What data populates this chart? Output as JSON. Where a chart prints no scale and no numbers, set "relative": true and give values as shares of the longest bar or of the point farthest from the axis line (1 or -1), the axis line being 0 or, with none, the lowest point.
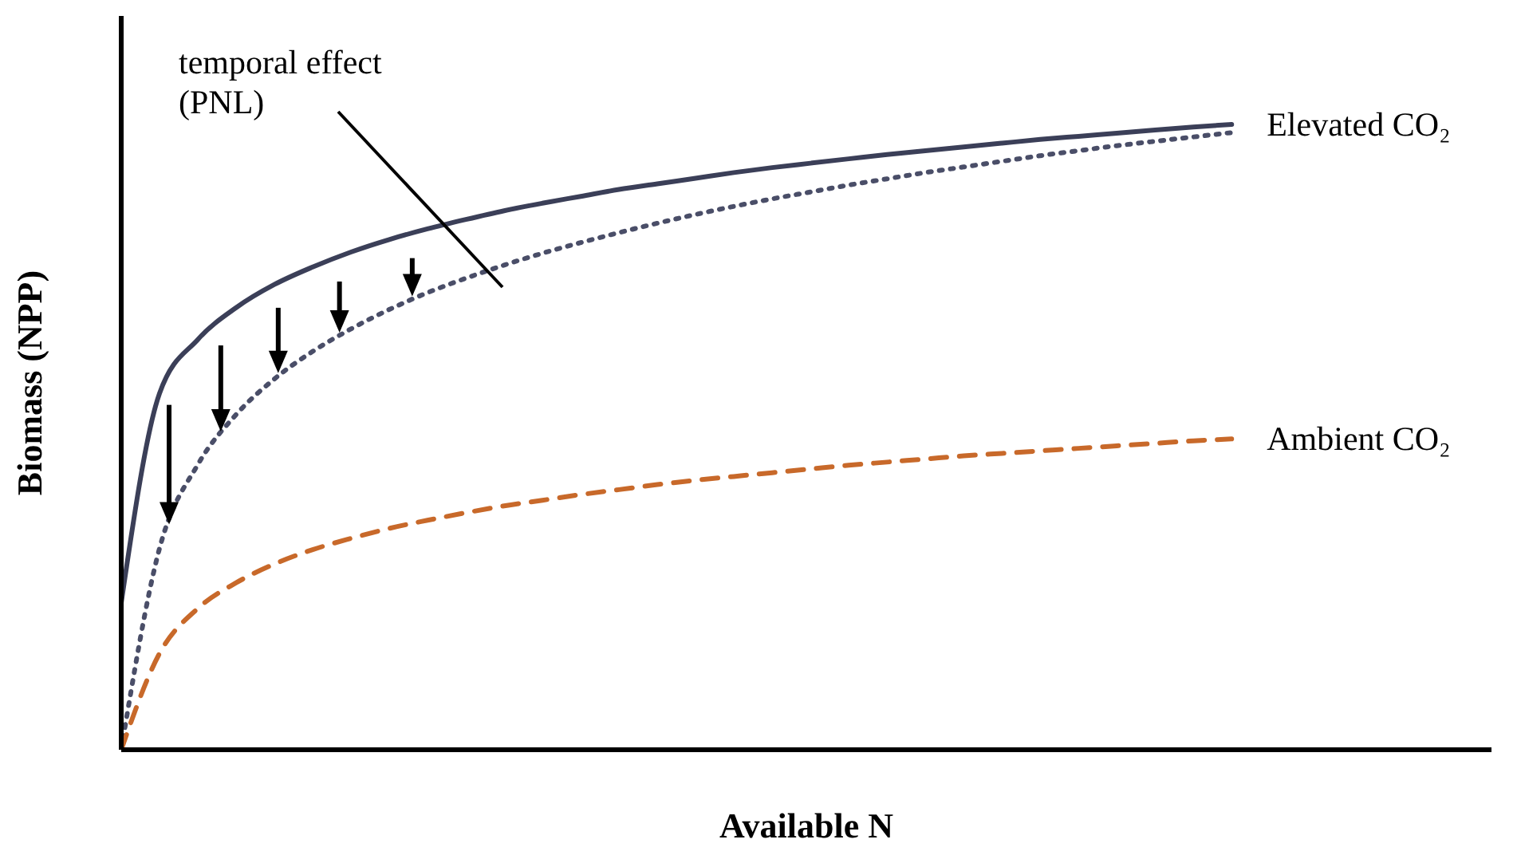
{
  "chart_data": {
    "type": "line",
    "xlabel": "Available N",
    "ylabel": "Biomass (NPP)",
    "relative": true,
    "annotations": [
      "temporal effect (PNL)"
    ],
    "categories": [
      null,
      null,
      null,
      null,
      null,
      null,
      null,
      null,
      null,
      null,
      null,
      null,
      null,
      null,
      null,
      null,
      null,
      null,
      null,
      null,
      null,
      null,
      null,
      null,
      null,
      null,
      null,
      null,
      null,
      null
    ],
    "series": [
      {
        "name": "Elevated CO₂",
        "color": "#3b3f58",
        "line_style": "solid",
        "values": [
          0.235,
          0.57,
          0.656,
          0.707,
          0.744,
          0.772,
          0.796,
          0.816,
          0.833,
          0.848,
          0.862,
          0.874,
          0.885,
          0.896,
          0.905,
          0.914,
          0.923,
          0.931,
          0.938,
          0.945,
          0.952,
          0.958,
          0.964,
          0.97,
          0.976,
          0.981,
          0.986,
          0.991,
          0.996,
          1.0
        ]
      },
      {
        "color": "#4a4e68",
        "line_style": "dotted",
        "values": [
          0,
          0.322,
          0.456,
          0.536,
          0.593,
          0.637,
          0.673,
          0.704,
          0.731,
          0.754,
          0.775,
          0.794,
          0.811,
          0.827,
          0.842,
          0.856,
          0.869,
          0.881,
          0.892,
          0.903,
          0.913,
          0.923,
          0.932,
          0.941,
          0.95,
          0.958,
          0.966,
          0.973,
          0.98,
          0.987
        ]
      },
      {
        "name": "Ambient CO₂",
        "color": "#c8692a",
        "line_style": "dashed",
        "values": [
          0,
          0.154,
          0.226,
          0.267,
          0.297,
          0.32,
          0.338,
          0.354,
          0.367,
          0.379,
          0.39,
          0.399,
          0.408,
          0.416,
          0.424,
          0.431,
          0.437,
          0.443,
          0.449,
          0.455,
          0.46,
          0.465,
          0.47,
          0.474,
          0.478,
          0.482,
          0.486,
          0.49,
          0.494,
          0.497
        ]
      }
    ]
  }
}
